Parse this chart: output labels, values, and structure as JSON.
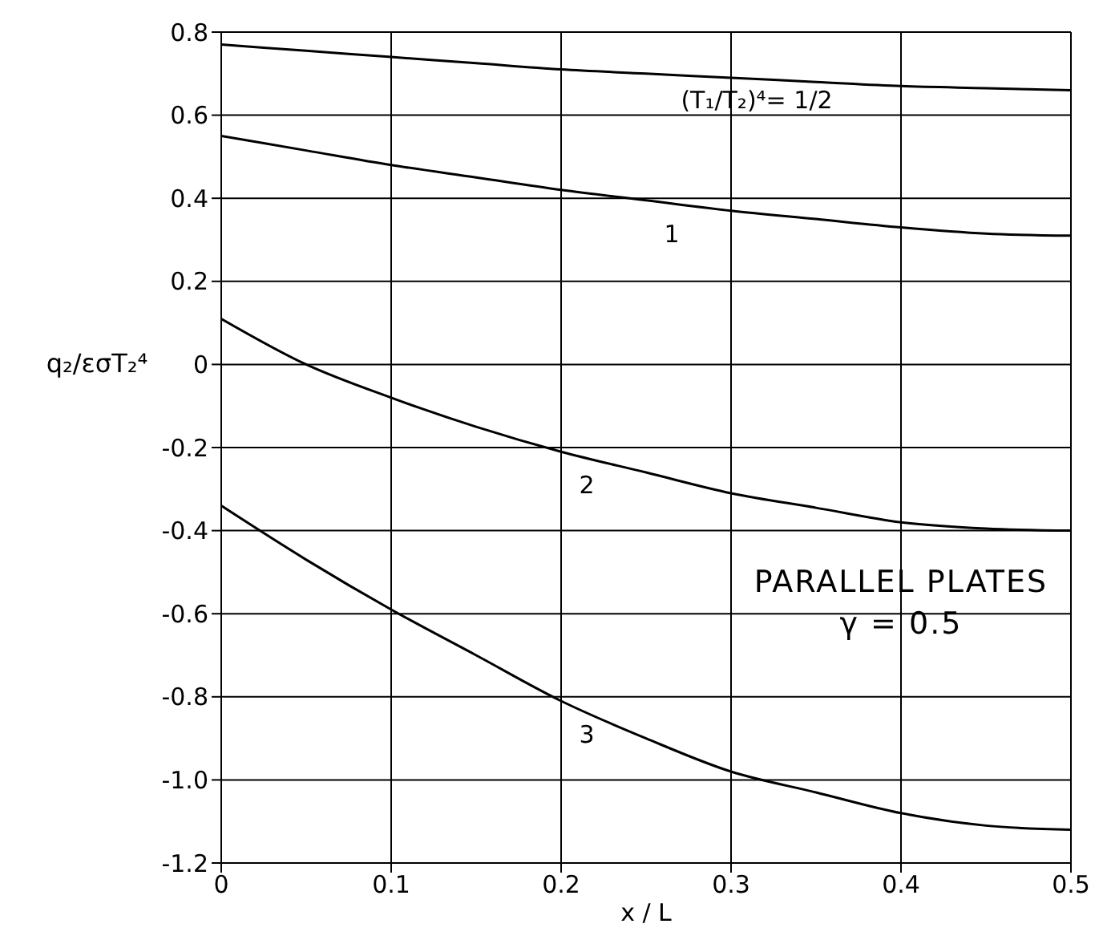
{
  "chart_data": {
    "type": "line",
    "xlabel": "x / L",
    "ylabel": "q₂/εσT₂⁴",
    "x": [
      0,
      0.05,
      0.1,
      0.15,
      0.2,
      0.25,
      0.3,
      0.35,
      0.4,
      0.45,
      0.5
    ],
    "series": [
      {
        "name": "(T₁/T₂)⁴= 1/2",
        "color": "#000000",
        "values": [
          0.77,
          0.755,
          0.74,
          0.725,
          0.71,
          0.7,
          0.69,
          0.68,
          0.67,
          0.665,
          0.66
        ]
      },
      {
        "name": "1",
        "color": "#000000",
        "values": [
          0.55,
          0.515,
          0.48,
          0.45,
          0.42,
          0.395,
          0.37,
          0.35,
          0.33,
          0.315,
          0.31
        ]
      },
      {
        "name": "2",
        "color": "#000000",
        "values": [
          0.11,
          0.0,
          -0.08,
          -0.15,
          -0.21,
          -0.26,
          -0.31,
          -0.345,
          -0.38,
          -0.395,
          -0.4
        ]
      },
      {
        "name": "3",
        "color": "#000000",
        "values": [
          -0.34,
          -0.47,
          -0.59,
          -0.7,
          -0.81,
          -0.9,
          -0.98,
          -1.03,
          -1.08,
          -1.11,
          -1.12
        ]
      }
    ],
    "xlim": [
      0,
      0.5
    ],
    "xticks": [
      0,
      0.1,
      0.2,
      0.3,
      0.4,
      0.5
    ],
    "ylim": [
      -1.2,
      0.8
    ],
    "yticks": [
      {
        "value": -1.2,
        "label": "-1.2"
      },
      {
        "value": -1,
        "label": "-1.0"
      },
      -0.8,
      -0.6,
      -0.4,
      -0.2,
      0,
      0.2,
      0.4,
      0.6,
      0.8
    ],
    "annotations": [
      "PARALLEL PLATES",
      "γ = 0.5"
    ],
    "grid": true,
    "legend": false,
    "marker": "none",
    "line_style": "solid"
  }
}
